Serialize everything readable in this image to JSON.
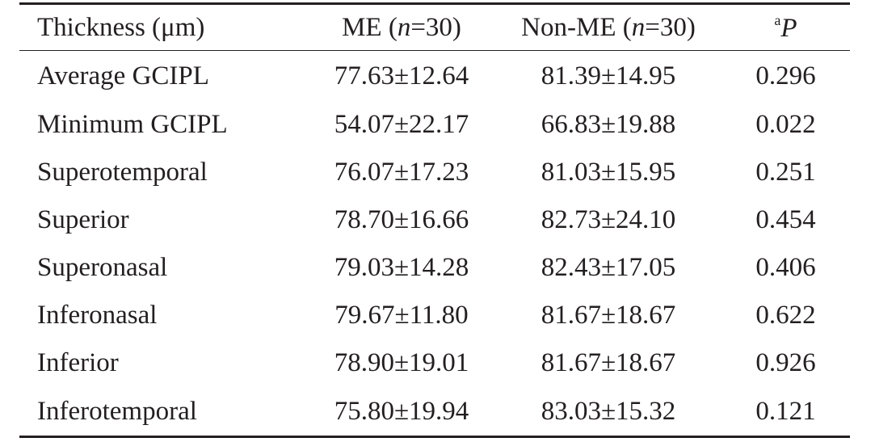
{
  "table": {
    "headers": {
      "thickness": "Thickness (μm)",
      "me_prefix": "ME (",
      "me_n": "n",
      "me_suffix": "=30)",
      "nonme_prefix": "Non-ME (",
      "nonme_n": "n",
      "nonme_suffix": "=30)",
      "p_sup": "a",
      "p_label": "P"
    },
    "rows": [
      {
        "region": "Average GCIPL",
        "me": "77.63±12.64",
        "non_me": "81.39±14.95",
        "p": "0.296"
      },
      {
        "region": "Minimum GCIPL",
        "me": "54.07±22.17",
        "non_me": "66.83±19.88",
        "p": "0.022"
      },
      {
        "region": "Superotemporal",
        "me": "76.07±17.23",
        "non_me": "81.03±15.95",
        "p": "0.251"
      },
      {
        "region": "Superior",
        "me": "78.70±16.66",
        "non_me": "82.73±24.10",
        "p": "0.454"
      },
      {
        "region": "Superonasal",
        "me": "79.03±14.28",
        "non_me": "82.43±17.05",
        "p": "0.406"
      },
      {
        "region": "Inferonasal",
        "me": "79.67±11.80",
        "non_me": "81.67±18.67",
        "p": "0.622"
      },
      {
        "region": "Inferior",
        "me": "78.90±19.01",
        "non_me": "81.67±18.67",
        "p": "0.926"
      },
      {
        "region": "Inferotemporal",
        "me": "75.80±19.94",
        "non_me": "83.03±15.32",
        "p": "0.121"
      }
    ]
  }
}
